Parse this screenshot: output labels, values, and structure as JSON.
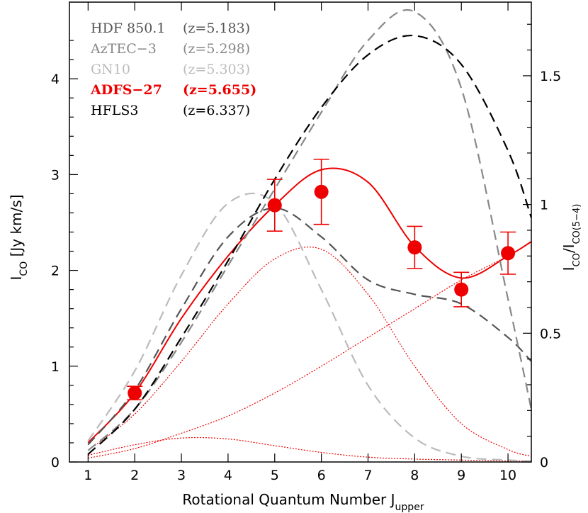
{
  "chart_data": {
    "type": "line",
    "title": "",
    "xlabel": "Rotational Quantum Number J",
    "xlabel_sub": "upper",
    "ylabel_left": "I",
    "ylabel_left_sub": "CO",
    "ylabel_left_rest": " [Jy km/s]",
    "ylabel_right": "I",
    "ylabel_right_sub1": "CO",
    "ylabel_right_mid": "/I",
    "ylabel_right_sub2": "CO(5−4)",
    "xlim": [
      0.6,
      10.5
    ],
    "ylim": [
      0,
      4.8
    ],
    "ylim_right": [
      0,
      1.786
    ],
    "x_ticks": [
      "1",
      "2",
      "3",
      "4",
      "5",
      "6",
      "7",
      "8",
      "9",
      "10"
    ],
    "y_ticks": [
      "0",
      "1",
      "2",
      "3",
      "4"
    ],
    "y_right_ticks": [
      "0",
      "0.5",
      "1",
      "1.5"
    ],
    "legend_position": "top-left",
    "legend": [
      {
        "name": "HDF 850.1",
        "z": "(z=5.183)",
        "color": "#555555"
      },
      {
        "name": "AzTEC−3",
        "z": "(z=5.298)",
        "color": "#888888"
      },
      {
        "name": "GN10",
        "z": "(z=5.303)",
        "color": "#bbbbbb"
      },
      {
        "name": "ADFS−27",
        "z": "(z=5.655)",
        "color": "#ee0000"
      },
      {
        "name": "HFLS3",
        "z": "(z=6.337)",
        "color": "#000000"
      }
    ],
    "observations": {
      "color": "#ee0000",
      "x": [
        2,
        5,
        6,
        8,
        9,
        10
      ],
      "y": [
        0.72,
        2.68,
        2.82,
        2.24,
        1.8,
        2.18
      ],
      "y_low": [
        0.65,
        2.41,
        2.48,
        2.02,
        1.62,
        1.96
      ],
      "y_high": [
        0.79,
        2.95,
        3.16,
        2.46,
        1.98,
        2.4
      ]
    },
    "models": [
      {
        "style": "solid",
        "color": "#ee0000",
        "x": [
          1,
          2,
          3,
          4,
          5,
          6,
          7,
          8,
          9,
          10,
          10.5
        ],
        "y": [
          0.2,
          0.72,
          1.5,
          2.15,
          2.68,
          3.05,
          2.92,
          2.25,
          1.92,
          2.15,
          2.3
        ]
      },
      {
        "style": "dotted",
        "color": "#ee0000",
        "x": [
          1,
          2,
          3,
          4,
          5,
          6,
          7,
          8,
          9,
          10,
          10.5
        ],
        "y": [
          0.12,
          0.5,
          1.05,
          1.65,
          2.12,
          2.22,
          1.75,
          1.0,
          0.4,
          0.13,
          0.06
        ]
      },
      {
        "style": "dotted",
        "color": "#ee0000",
        "x": [
          1,
          2,
          3,
          4,
          5,
          6,
          7,
          8,
          9,
          10,
          10.5
        ],
        "y": [
          0.04,
          0.14,
          0.3,
          0.48,
          0.72,
          1.0,
          1.3,
          1.6,
          1.9,
          2.15,
          2.3
        ]
      },
      {
        "style": "dotted",
        "color": "#ee0000",
        "x": [
          1,
          2,
          3,
          4,
          5,
          6,
          7,
          8,
          9,
          10,
          10.5
        ],
        "y": [
          0.07,
          0.18,
          0.25,
          0.24,
          0.17,
          0.1,
          0.05,
          0.03,
          0.02,
          0.01,
          0.01
        ]
      },
      {
        "style": "dashed",
        "color": "#555555",
        "x": [
          1,
          2,
          3,
          4,
          5,
          6,
          7,
          8,
          9,
          10,
          10.5
        ],
        "y": [
          0.18,
          0.75,
          1.6,
          2.35,
          2.65,
          2.35,
          1.9,
          1.75,
          1.65,
          1.3,
          1.05
        ]
      },
      {
        "style": "dashed",
        "color": "#888888",
        "x": [
          1,
          2,
          3,
          4,
          5,
          6,
          7,
          8,
          9,
          10,
          10.5
        ],
        "y": [
          0.12,
          0.55,
          1.25,
          2.05,
          2.85,
          3.65,
          4.4,
          4.7,
          3.9,
          1.7,
          0.55
        ]
      },
      {
        "style": "dashed",
        "color": "#bbbbbb",
        "x": [
          1,
          2,
          3,
          4,
          5,
          6,
          7,
          8,
          9,
          10,
          10.5
        ],
        "y": [
          0.22,
          0.95,
          1.95,
          2.7,
          2.7,
          1.8,
          0.8,
          0.25,
          0.06,
          0.02,
          0.01
        ]
      },
      {
        "style": "dashed",
        "color": "#000000",
        "x": [
          1,
          2,
          3,
          4,
          5,
          6,
          7,
          8,
          9,
          10,
          10.5
        ],
        "y": [
          0.08,
          0.55,
          1.3,
          2.1,
          2.95,
          3.7,
          4.25,
          4.45,
          4.15,
          3.25,
          2.55
        ]
      }
    ]
  }
}
